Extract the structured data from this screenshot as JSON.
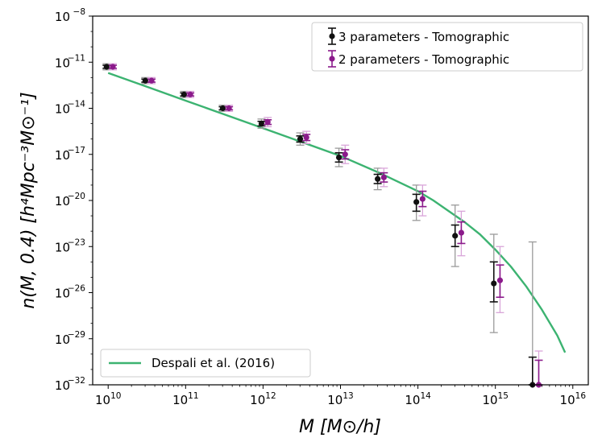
{
  "chart_data": {
    "type": "scatter",
    "title": "",
    "xlabel": "M [M⊙/h]",
    "ylabel": "n(M, 0.4) [h⁴Mpc⁻³M⊙⁻¹]",
    "xscale": "log",
    "yscale": "log",
    "xlim_exp": [
      9.8,
      16.2
    ],
    "ylim_exp": [
      -32,
      -8
    ],
    "x_ticks": [
      {
        "base": "10",
        "exp": "10"
      },
      {
        "base": "10",
        "exp": "11"
      },
      {
        "base": "10",
        "exp": "12"
      },
      {
        "base": "10",
        "exp": "13"
      },
      {
        "base": "10",
        "exp": "14"
      },
      {
        "base": "10",
        "exp": "15"
      },
      {
        "base": "10",
        "exp": "16"
      }
    ],
    "y_ticks": [
      {
        "base": "10",
        "exp": "−8"
      },
      {
        "base": "10",
        "exp": "−11"
      },
      {
        "base": "10",
        "exp": "−14"
      },
      {
        "base": "10",
        "exp": "−17"
      },
      {
        "base": "10",
        "exp": "−20"
      },
      {
        "base": "10",
        "exp": "−23"
      },
      {
        "base": "10",
        "exp": "−26"
      },
      {
        "base": "10",
        "exp": "−29"
      },
      {
        "base": "10",
        "exp": "−32"
      }
    ],
    "curve": {
      "name": "Despali et al. (2016)",
      "color": "#3cb371",
      "log_x": [
        10.0,
        10.5,
        11.0,
        11.5,
        12.0,
        12.5,
        13.0,
        13.5,
        14.0,
        14.2,
        14.4,
        14.6,
        14.8,
        15.0,
        15.2,
        15.4,
        15.6,
        15.8,
        15.9
      ],
      "log_y": [
        -11.7,
        -12.6,
        -13.5,
        -14.4,
        -15.3,
        -16.2,
        -17.1,
        -18.2,
        -19.4,
        -20.0,
        -20.7,
        -21.4,
        -22.2,
        -23.2,
        -24.3,
        -25.6,
        -27.1,
        -28.8,
        -29.9
      ]
    },
    "series": [
      {
        "name": "3 parameters - Tomographic",
        "color": "#111111",
        "outer_color": "#9a9a9a",
        "log_x": [
          10.0,
          10.5,
          11.0,
          11.5,
          12.0,
          12.5,
          13.0,
          13.5,
          14.0,
          14.5,
          15.0,
          15.5
        ],
        "log_y": [
          -11.3,
          -12.2,
          -13.1,
          -14.0,
          -15.0,
          -16.0,
          -17.2,
          -18.6,
          -20.1,
          -22.3,
          -25.4,
          -32.0
        ],
        "inner_low": [
          -11.4,
          -12.3,
          -13.2,
          -14.1,
          -15.15,
          -16.2,
          -17.5,
          -18.9,
          -20.7,
          -23.0,
          -26.6,
          -33.0
        ],
        "inner_high": [
          -11.2,
          -12.1,
          -13.0,
          -13.9,
          -14.85,
          -15.8,
          -16.9,
          -18.3,
          -19.6,
          -21.6,
          -24.0,
          -30.2
        ],
        "outer_low": [
          -11.5,
          -12.4,
          -13.3,
          -14.2,
          -15.3,
          -16.4,
          -17.8,
          -19.3,
          -21.3,
          -24.3,
          -28.6,
          -33.0
        ],
        "outer_high": [
          -11.1,
          -12.0,
          -12.9,
          -13.8,
          -14.7,
          -15.6,
          -16.6,
          -17.9,
          -19.0,
          -20.3,
          -22.2,
          -22.7
        ]
      },
      {
        "name": "2 parameters - Tomographic",
        "color": "#8b1a8b",
        "outer_color": "#d9a5d9",
        "log_x": [
          10.0,
          10.5,
          11.0,
          11.5,
          12.0,
          12.5,
          13.0,
          13.5,
          14.0,
          14.5,
          15.0,
          15.5
        ],
        "log_y": [
          -11.3,
          -12.2,
          -13.1,
          -14.0,
          -14.9,
          -15.9,
          -17.0,
          -18.5,
          -19.9,
          -22.1,
          -25.2,
          -32.0
        ],
        "inner_low": [
          -11.4,
          -12.3,
          -13.2,
          -14.1,
          -15.05,
          -16.1,
          -17.3,
          -18.8,
          -20.4,
          -22.8,
          -26.3,
          -33.0
        ],
        "inner_high": [
          -11.2,
          -12.1,
          -13.0,
          -13.9,
          -14.75,
          -15.7,
          -16.7,
          -18.2,
          -19.4,
          -21.4,
          -24.2,
          -30.4
        ],
        "outer_low": [
          -11.5,
          -12.4,
          -13.3,
          -14.2,
          -15.2,
          -16.3,
          -17.6,
          -19.1,
          -21.0,
          -23.6,
          -27.3,
          -33.0
        ],
        "outer_high": [
          -11.1,
          -12.0,
          -12.9,
          -13.8,
          -14.6,
          -15.5,
          -16.4,
          -17.9,
          -19.0,
          -20.7,
          -23.0,
          -29.8
        ]
      }
    ],
    "legend_upper": "upper right",
    "legend_lower": "lower left",
    "grid": false
  }
}
